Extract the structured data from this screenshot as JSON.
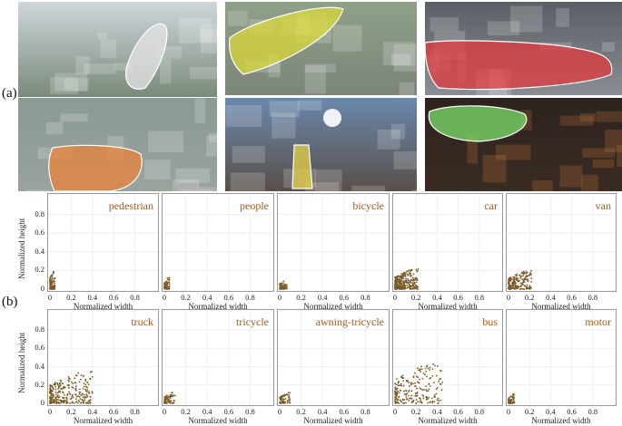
{
  "figure": {
    "panel_a_label": "(a)",
    "panel_b_label": "(b)"
  },
  "photos": [
    {
      "id": "street-buildings",
      "sky": "#cfd6dc",
      "ground": "#7a8a7a",
      "region": "#e6e6e6"
    },
    {
      "id": "aerial-city-yellow",
      "sky": "#8fa088",
      "ground": "#7b857a",
      "region": "#d8d83a"
    },
    {
      "id": "plaza-red",
      "sky": "#5b5f66",
      "ground": "#8a8d93",
      "region": "#e0393e"
    },
    {
      "id": "intersection-orange",
      "sky": "#8a9a94",
      "ground": "#9aa29c",
      "region": "#e8833a"
    },
    {
      "id": "sunset-highway",
      "sky": "#6a88ad",
      "ground": "#5a4f48",
      "region": "#e6d24a"
    },
    {
      "id": "night-intersection-green",
      "sky": "#2c2320",
      "ground": "#3a2b22",
      "region": "#7ee06a"
    }
  ],
  "axis_text": {
    "ylabel": "Normalized height",
    "xlabel": "Normalized width",
    "yticks": [
      "0.8",
      "0.6",
      "0.4",
      "0.2",
      "0"
    ],
    "xticks": [
      "0",
      "0.2",
      "0.4",
      "0.6",
      "0.8"
    ]
  },
  "chart_data": [
    {
      "type": "scatter",
      "title": "pedestrian",
      "point_color": "#7a5a26",
      "xlim": [
        0,
        1
      ],
      "ylim": [
        0,
        1
      ],
      "spread": {
        "w": 0.05,
        "h": 0.2,
        "n": 90
      },
      "show_ylabel": true
    },
    {
      "type": "scatter",
      "title": "people",
      "point_color": "#7a5a26",
      "xlim": [
        0,
        1
      ],
      "ylim": [
        0,
        1
      ],
      "spread": {
        "w": 0.05,
        "h": 0.13,
        "n": 60
      },
      "show_ylabel": false
    },
    {
      "type": "scatter",
      "title": "bicycle",
      "point_color": "#7a5a26",
      "xlim": [
        0,
        1
      ],
      "ylim": [
        0,
        1
      ],
      "spread": {
        "w": 0.07,
        "h": 0.1,
        "n": 60
      },
      "show_ylabel": false
    },
    {
      "type": "scatter",
      "title": "car",
      "point_color": "#7a5a26",
      "xlim": [
        0,
        1
      ],
      "ylim": [
        0,
        1
      ],
      "spread": {
        "w": 0.22,
        "h": 0.22,
        "n": 320
      },
      "show_ylabel": false
    },
    {
      "type": "scatter",
      "title": "van",
      "point_color": "#7a5a26",
      "xlim": [
        0,
        1
      ],
      "ylim": [
        0,
        1
      ],
      "spread": {
        "w": 0.22,
        "h": 0.2,
        "n": 220
      },
      "show_ylabel": false
    },
    {
      "type": "scatter",
      "title": "truck",
      "point_color": "#7a5a26",
      "xlim": [
        0,
        1
      ],
      "ylim": [
        0,
        1
      ],
      "spread": {
        "w": 0.4,
        "h": 0.35,
        "n": 300
      },
      "show_ylabel": true
    },
    {
      "type": "scatter",
      "title": "tricycle",
      "point_color": "#7a5a26",
      "xlim": [
        0,
        1
      ],
      "ylim": [
        0,
        1
      ],
      "spread": {
        "w": 0.1,
        "h": 0.12,
        "n": 80
      },
      "show_ylabel": false
    },
    {
      "type": "scatter",
      "title": "awning-tricycle",
      "point_color": "#7a5a26",
      "xlim": [
        0,
        1
      ],
      "ylim": [
        0,
        1
      ],
      "spread": {
        "w": 0.1,
        "h": 0.12,
        "n": 70
      },
      "show_ylabel": false
    },
    {
      "type": "scatter",
      "title": "bus",
      "point_color": "#7a5a26",
      "xlim": [
        0,
        1
      ],
      "ylim": [
        0,
        1
      ],
      "spread": {
        "w": 0.45,
        "h": 0.45,
        "n": 220
      },
      "show_ylabel": false
    },
    {
      "type": "scatter",
      "title": "motor",
      "point_color": "#7a5a26",
      "xlim": [
        0,
        1
      ],
      "ylim": [
        0,
        1
      ],
      "spread": {
        "w": 0.06,
        "h": 0.1,
        "n": 70
      },
      "show_ylabel": false
    }
  ]
}
